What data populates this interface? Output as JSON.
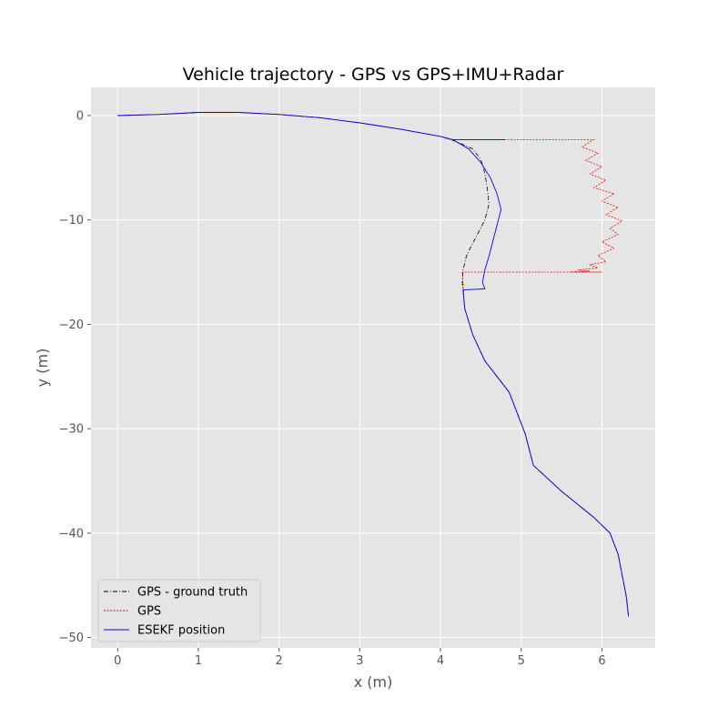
{
  "chart_data": {
    "type": "line",
    "title": "Vehicle trajectory - GPS vs GPS+IMU+Radar",
    "xlabel": "x (m)",
    "ylabel": "y (m)",
    "xlim": [
      -0.33,
      6.66
    ],
    "ylim": [
      -51.0,
      2.7
    ],
    "xticks": [
      0,
      1,
      2,
      3,
      4,
      5,
      6
    ],
    "yticks": [
      0,
      -10,
      -20,
      -30,
      -40,
      -50
    ],
    "xtick_labels": [
      "0",
      "1",
      "2",
      "3",
      "4",
      "5",
      "6"
    ],
    "ytick_labels": [
      "0",
      "−10",
      "−20",
      "−30",
      "−40",
      "−50"
    ],
    "grid": true,
    "legend_position": "lower-left",
    "series": [
      {
        "name": "GPS - ground truth",
        "color": "#000000",
        "style": "dash-dot",
        "x": [
          0,
          0.5,
          1.0,
          1.5,
          2.0,
          2.5,
          3.0,
          3.5,
          4.0,
          4.2,
          4.4,
          4.5,
          4.55,
          4.58,
          4.6,
          4.55,
          4.45,
          4.38,
          4.32,
          4.28,
          4.27,
          4.3,
          4.4,
          4.55,
          4.7,
          4.85,
          4.95,
          5.05,
          5.15,
          5.5,
          5.9,
          6.1,
          6.2,
          6.25,
          6.3,
          6.33
        ],
        "y": [
          0,
          0.1,
          0.3,
          0.3,
          0.1,
          -0.2,
          -0.7,
          -1.3,
          -2.0,
          -2.5,
          -3.2,
          -4.2,
          -5.5,
          -7.0,
          -8.5,
          -10.0,
          -11.5,
          -12.5,
          -13.5,
          -14.8,
          -16.0,
          -18.5,
          -21.0,
          -23.5,
          -25.0,
          -26.5,
          -28.5,
          -30.5,
          -33.5,
          -36.0,
          -38.5,
          -40.0,
          -42.0,
          -44.0,
          -46.0,
          -48.0
        ]
      },
      {
        "name": "GPS",
        "color": "#ff0000",
        "style": "dotted",
        "x": [
          0,
          0.5,
          1.0,
          1.5,
          2.0,
          2.5,
          3.0,
          3.5,
          4.0,
          4.15,
          4.8,
          5.9,
          5.75,
          5.95,
          5.8,
          6.0,
          5.85,
          6.05,
          5.9,
          6.15,
          6.0,
          6.2,
          6.05,
          6.25,
          6.1,
          6.2,
          6.0,
          6.15,
          5.95,
          6.05,
          5.85,
          5.95,
          5.7,
          5.85,
          5.6,
          5.8,
          6.0,
          4.27,
          4.3,
          4.4,
          4.55,
          4.7,
          4.85,
          4.95,
          5.05,
          5.15,
          5.5,
          5.9,
          6.1,
          6.2,
          6.25,
          6.3,
          6.33
        ],
        "y": [
          0,
          0.1,
          0.3,
          0.3,
          0.1,
          -0.2,
          -0.7,
          -1.3,
          -2.0,
          -2.3,
          -2.3,
          -2.3,
          -3.0,
          -3.6,
          -4.3,
          -4.9,
          -5.6,
          -6.2,
          -6.9,
          -7.5,
          -8.2,
          -8.8,
          -9.5,
          -10.1,
          -10.8,
          -11.4,
          -12.1,
          -12.7,
          -13.4,
          -14.0,
          -14.3,
          -14.6,
          -14.8,
          -14.9,
          -15.0,
          -15.0,
          -15.0,
          -15.0,
          -18.5,
          -21.0,
          -23.5,
          -25.0,
          -26.5,
          -28.5,
          -30.5,
          -33.5,
          -36.0,
          -38.5,
          -40.0,
          -42.0,
          -44.0,
          -46.0,
          -48.0
        ]
      },
      {
        "name": "ESEKF position",
        "color": "#0000ff",
        "style": "solid",
        "x": [
          0,
          0.5,
          1.0,
          1.5,
          2.0,
          2.5,
          3.0,
          3.5,
          4.0,
          4.15,
          4.8,
          4.15,
          4.35,
          4.5,
          4.62,
          4.7,
          4.75,
          4.7,
          4.65,
          4.6,
          4.55,
          4.52,
          4.55,
          4.28,
          4.3,
          4.4,
          4.55,
          4.7,
          4.85,
          4.95,
          5.05,
          5.15,
          5.5,
          5.9,
          6.1,
          6.2,
          6.25,
          6.3,
          6.33
        ],
        "y": [
          0,
          0.1,
          0.3,
          0.3,
          0.1,
          -0.2,
          -0.7,
          -1.3,
          -2.0,
          -2.3,
          -2.3,
          -2.3,
          -3.2,
          -4.5,
          -6.0,
          -7.5,
          -9.0,
          -10.5,
          -12.0,
          -13.5,
          -14.8,
          -16.0,
          -16.6,
          -16.7,
          -18.5,
          -21.0,
          -23.5,
          -25.0,
          -26.5,
          -28.5,
          -30.5,
          -33.5,
          -36.0,
          -38.5,
          -40.0,
          -42.0,
          -44.0,
          -46.0,
          -48.0
        ]
      }
    ]
  }
}
